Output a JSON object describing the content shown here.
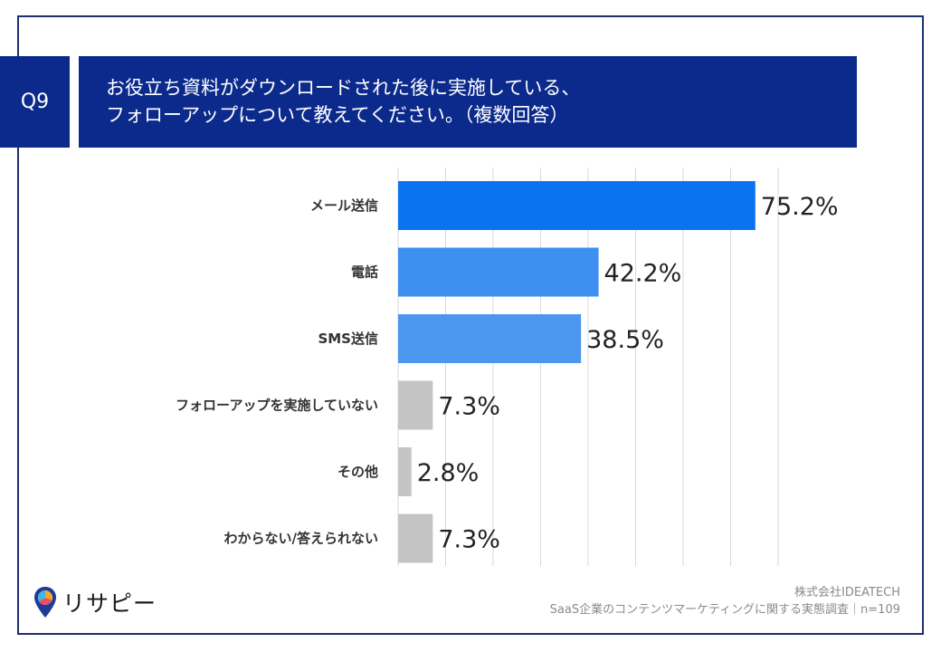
{
  "question": {
    "number": "Q9",
    "line1": "お役立ち資料がダウンロードされた後に実施している、",
    "line2": "フォローアップについて教えてください。（複数回答）"
  },
  "chart_data": {
    "type": "bar",
    "orientation": "horizontal",
    "categories": [
      "メール送信",
      "電話",
      "SMS送信",
      "フォローアップを実施していない",
      "その他",
      "わからない/答えられない"
    ],
    "values": [
      75.2,
      42.2,
      38.5,
      7.3,
      2.8,
      7.3
    ],
    "value_labels": [
      "75.2%",
      "42.2%",
      "38.5%",
      "7.3%",
      "2.8%",
      "7.3%"
    ],
    "colors": [
      "#0a74f0",
      "#3d8ff0",
      "#4b96ef",
      "#c4c4c4",
      "#c4c4c4",
      "#c4c4c4"
    ],
    "xlim": [
      0,
      80
    ],
    "grid": true
  },
  "footer": {
    "company": "株式会社IDEATECH",
    "survey": "SaaS企業のコンテンツマーケティングに関する実態調査｜n=109"
  },
  "logo": {
    "text": "リサピー"
  }
}
